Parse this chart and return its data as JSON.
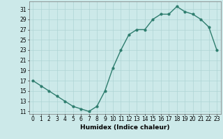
{
  "x": [
    0,
    1,
    2,
    3,
    4,
    5,
    6,
    7,
    8,
    9,
    10,
    11,
    12,
    13,
    14,
    15,
    16,
    17,
    18,
    19,
    20,
    21,
    22,
    23
  ],
  "y": [
    17,
    16,
    15,
    14,
    13,
    12,
    11.5,
    11,
    12,
    15,
    19.5,
    23,
    26,
    27,
    27,
    29,
    30,
    30,
    31.5,
    30.5,
    30,
    29,
    27.5,
    23
  ],
  "line_color": "#2e7d6e",
  "marker": "o",
  "marker_size": 2.0,
  "bg_color": "#cce9e9",
  "grid_color": "#aed4d4",
  "xlabel": "Humidex (Indice chaleur)",
  "xlim": [
    -0.5,
    23.5
  ],
  "ylim": [
    10.5,
    32.5
  ],
  "yticks": [
    11,
    13,
    15,
    17,
    19,
    21,
    23,
    25,
    27,
    29,
    31
  ],
  "xticks": [
    0,
    1,
    2,
    3,
    4,
    5,
    6,
    7,
    8,
    9,
    10,
    11,
    12,
    13,
    14,
    15,
    16,
    17,
    18,
    19,
    20,
    21,
    22,
    23
  ],
  "tick_fontsize": 5.5,
  "xlabel_fontsize": 6.5,
  "line_width": 1.0
}
